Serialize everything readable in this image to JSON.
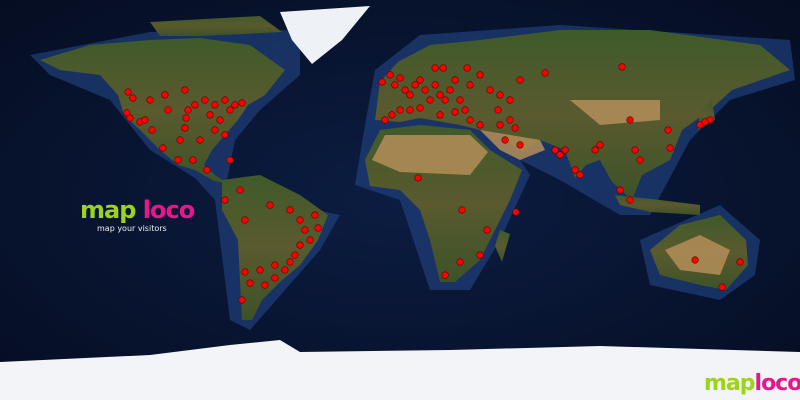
{
  "logo": {
    "map": "map",
    "loco": "loco",
    "tagline": "map your visitors"
  },
  "corner_logo": {
    "map": "map",
    "loco": "loco"
  },
  "colors": {
    "ocean": "#0a1836",
    "shelf": "#1f3f7a",
    "land": "#4b5b2c",
    "desert": "#b48e58",
    "ice": "#f2f4f8",
    "dot": "#ff0000",
    "logo_map": "#9bd31e",
    "logo_loco": "#e8168a"
  },
  "projection": "equirectangular",
  "visitor_dots": [
    [
      -122.4,
      48.6
    ],
    [
      -120.2,
      45.9
    ],
    [
      -122.9,
      39.2
    ],
    [
      -121.5,
      36.9
    ],
    [
      -117,
      35.1
    ],
    [
      -114.8,
      36
    ],
    [
      -112.5,
      45
    ],
    [
      -105.8,
      47.3
    ],
    [
      -104.4,
      40.5
    ],
    [
      -96.8,
      49.5
    ],
    [
      -95.4,
      40.5
    ],
    [
      -96.8,
      32.4
    ],
    [
      -92.3,
      42.8
    ],
    [
      -87.8,
      45
    ],
    [
      -85.5,
      38.3
    ],
    [
      -83.3,
      42.8
    ],
    [
      -81,
      36
    ],
    [
      -78.8,
      45
    ],
    [
      -76.5,
      40.5
    ],
    [
      -74.3,
      42.8
    ],
    [
      -71.1,
      43.7
    ],
    [
      -83.3,
      31.5
    ],
    [
      -78.8,
      29.3
    ],
    [
      -90,
      27
    ],
    [
      -106.7,
      23.4
    ],
    [
      -99.9,
      18
    ],
    [
      -93.2,
      18
    ],
    [
      -86.9,
      13.5
    ],
    [
      -76.5,
      18
    ],
    [
      -96.3,
      36.9
    ],
    [
      -99,
      27
    ],
    [
      -111.6,
      31.5
    ],
    [
      -78.8,
      0
    ],
    [
      -72,
      4.5
    ],
    [
      -69.8,
      -9
    ],
    [
      -58.5,
      -2.3
    ],
    [
      -49.5,
      -4.5
    ],
    [
      -45,
      -9
    ],
    [
      -42.8,
      -13.5
    ],
    [
      -38.3,
      -6.8
    ],
    [
      -36.9,
      -12.6
    ],
    [
      -40.5,
      -18
    ],
    [
      -45,
      -20.3
    ],
    [
      -47.3,
      -24.8
    ],
    [
      -49.5,
      -27.9
    ],
    [
      -51.8,
      -31.5
    ],
    [
      -56.3,
      -29.3
    ],
    [
      -63,
      -31.5
    ],
    [
      -69.8,
      -32.4
    ],
    [
      -67.5,
      -37.4
    ],
    [
      -60.8,
      -38.3
    ],
    [
      -56.3,
      -35.1
    ],
    [
      -71.1,
      -45
    ],
    [
      -8.1,
      53.1
    ],
    [
      -4.5,
      56.3
    ],
    [
      -2.3,
      51.8
    ],
    [
      0,
      54.9
    ],
    [
      2.3,
      49.5
    ],
    [
      4.5,
      47.3
    ],
    [
      6.8,
      51.8
    ],
    [
      9,
      54
    ],
    [
      11.3,
      49.5
    ],
    [
      13.5,
      45
    ],
    [
      15.8,
      51.8
    ],
    [
      18,
      47.3
    ],
    [
      20.3,
      45
    ],
    [
      22.5,
      49.5
    ],
    [
      24.8,
      54
    ],
    [
      27,
      45
    ],
    [
      29.3,
      40.5
    ],
    [
      31.5,
      51.8
    ],
    [
      36,
      56.3
    ],
    [
      40.5,
      49.5
    ],
    [
      45,
      47.3
    ],
    [
      49.5,
      45
    ],
    [
      54,
      54
    ],
    [
      15.8,
      59.4
    ],
    [
      19.4,
      59.4
    ],
    [
      0,
      40.5
    ],
    [
      -6.8,
      36
    ],
    [
      -3.6,
      38.3
    ],
    [
      4.5,
      40.5
    ],
    [
      9,
      41.4
    ],
    [
      18,
      38.3
    ],
    [
      24.8,
      39.6
    ],
    [
      31.5,
      36
    ],
    [
      36,
      33.8
    ],
    [
      45,
      33.8
    ],
    [
      49.5,
      36
    ],
    [
      51.8,
      32.4
    ],
    [
      47.3,
      27
    ],
    [
      54,
      24.8
    ],
    [
      44.1,
      40.5
    ],
    [
      65.3,
      57.2
    ],
    [
      99.9,
      59.9
    ],
    [
      30.2,
      59.4
    ],
    [
      69.8,
      22.5
    ],
    [
      72,
      20.3
    ],
    [
      74.3,
      22.5
    ],
    [
      78.8,
      13.5
    ],
    [
      81,
      11.3
    ],
    [
      87.8,
      22.5
    ],
    [
      90,
      24.8
    ],
    [
      103.5,
      36
    ],
    [
      105.8,
      22.5
    ],
    [
      108,
      18
    ],
    [
      99,
      4.5
    ],
    [
      103.5,
      0
    ],
    [
      120.6,
      31.5
    ],
    [
      121.5,
      23.4
    ],
    [
      135,
      33.8
    ],
    [
      139.5,
      36
    ],
    [
      137.3,
      35.1
    ],
    [
      8.1,
      9.9
    ],
    [
      27.9,
      -4.5
    ],
    [
      39.2,
      -13.5
    ],
    [
      36,
      -24.8
    ],
    [
      27,
      -27.9
    ],
    [
      20.3,
      -33.8
    ],
    [
      52.1,
      -5.4
    ],
    [
      132.8,
      -27
    ],
    [
      153,
      -27.9
    ],
    [
      144.9,
      -39.2
    ]
  ]
}
